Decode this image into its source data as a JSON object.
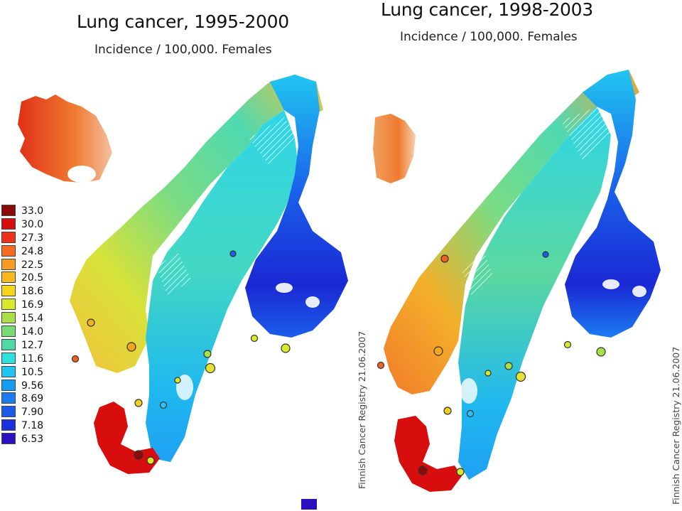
{
  "left_panel": {
    "title": "Lung cancer, 1995-2000",
    "subtitle": "Incidence / 100,000. Females"
  },
  "right_panel": {
    "title": "Lung cancer, 1998-2003",
    "subtitle": "Incidence / 100,000. Females"
  },
  "legend": {
    "items": [
      {
        "label": "33.0",
        "color": "#8b0a0a"
      },
      {
        "label": "30.0",
        "color": "#d40d0d"
      },
      {
        "label": "27.3",
        "color": "#f0301a"
      },
      {
        "label": "24.8",
        "color": "#f56a20"
      },
      {
        "label": "22.5",
        "color": "#f79a22"
      },
      {
        "label": "20.5",
        "color": "#f9b81e"
      },
      {
        "label": "18.6",
        "color": "#f7d51a"
      },
      {
        "label": "16.9",
        "color": "#d8e82a"
      },
      {
        "label": "15.4",
        "color": "#a9e04a"
      },
      {
        "label": "14.0",
        "color": "#78dc72"
      },
      {
        "label": "12.7",
        "color": "#4fd9a6"
      },
      {
        "label": "11.6",
        "color": "#2fe0e0"
      },
      {
        "label": "10.5",
        "color": "#1fc5f0"
      },
      {
        "label": "9.56",
        "color": "#139ef2"
      },
      {
        "label": "8.69",
        "color": "#1a7cf0"
      },
      {
        "label": "7.90",
        "color": "#1a5bea"
      },
      {
        "label": "7.18",
        "color": "#1a30dc"
      },
      {
        "label": "6.53",
        "color": "#2a10c0"
      }
    ]
  },
  "credit": "Finnish Cancer Registry 21.06.2007"
}
